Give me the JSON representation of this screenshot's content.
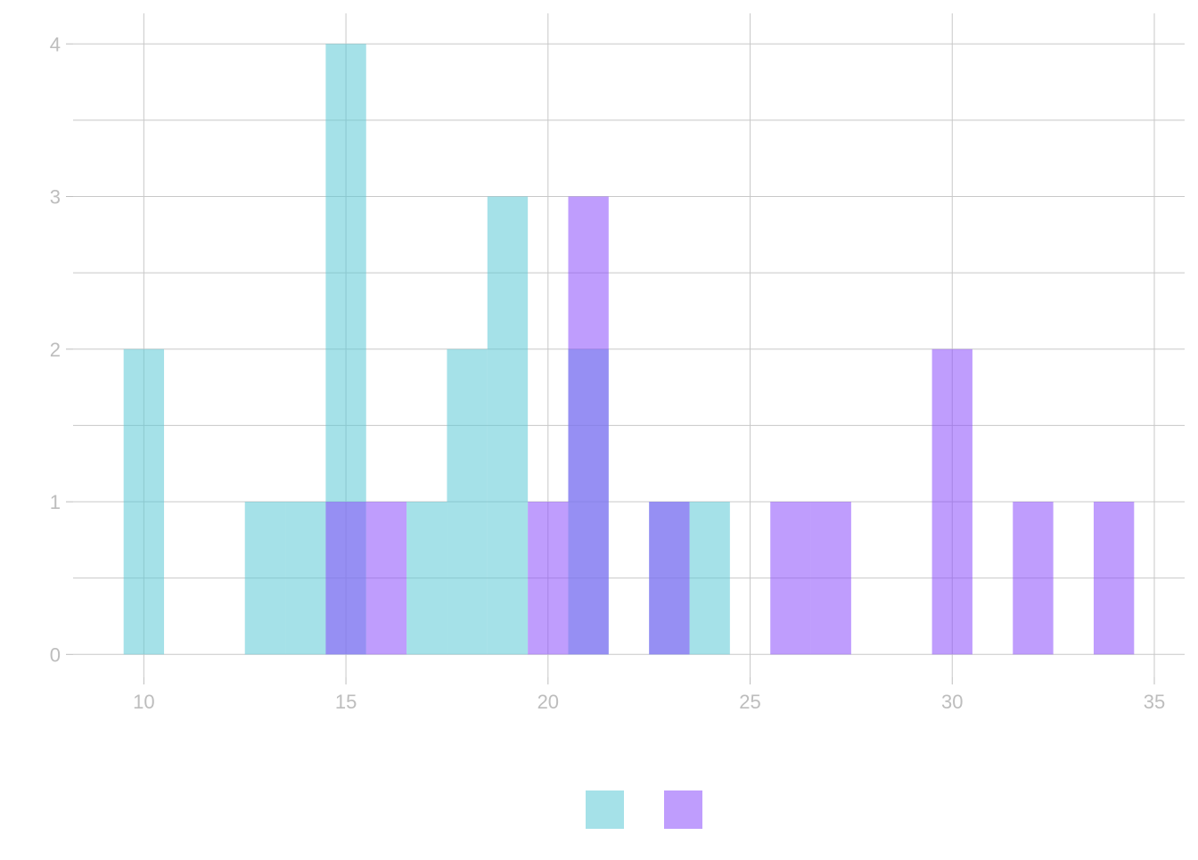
{
  "chart_data": {
    "type": "histogram",
    "title": "",
    "xlabel": "",
    "ylabel": "",
    "xlim": [
      8.25,
      35.75
    ],
    "ylim": [
      -0.15,
      4.2
    ],
    "x_ticks": [
      10,
      15,
      20,
      25,
      30,
      35
    ],
    "y_ticks": [
      0,
      1,
      2,
      3,
      4
    ],
    "grid": true,
    "bin_width": 1,
    "legend_placement": "bottom-center",
    "series": [
      {
        "name": "",
        "color": "#5bc8d5",
        "bins": [
          {
            "x0": 9.5,
            "x1": 10.5,
            "count": 2
          },
          {
            "x0": 12.5,
            "x1": 13.5,
            "count": 1
          },
          {
            "x0": 13.5,
            "x1": 14.5,
            "count": 1
          },
          {
            "x0": 14.5,
            "x1": 15.5,
            "count": 4
          },
          {
            "x0": 16.5,
            "x1": 17.5,
            "count": 1
          },
          {
            "x0": 17.5,
            "x1": 18.5,
            "count": 2
          },
          {
            "x0": 18.5,
            "x1": 19.5,
            "count": 3
          },
          {
            "x0": 20.5,
            "x1": 21.5,
            "count": 2
          },
          {
            "x0": 22.5,
            "x1": 23.5,
            "count": 1
          },
          {
            "x0": 23.5,
            "x1": 24.5,
            "count": 1
          }
        ]
      },
      {
        "name": "",
        "color": "#8a4dfb",
        "bins": [
          {
            "x0": 14.5,
            "x1": 15.5,
            "count": 1
          },
          {
            "x0": 15.5,
            "x1": 16.5,
            "count": 1
          },
          {
            "x0": 19.5,
            "x1": 20.5,
            "count": 1
          },
          {
            "x0": 20.5,
            "x1": 21.5,
            "count": 3
          },
          {
            "x0": 22.5,
            "x1": 23.5,
            "count": 1
          },
          {
            "x0": 25.5,
            "x1": 26.5,
            "count": 1
          },
          {
            "x0": 26.5,
            "x1": 27.5,
            "count": 1
          },
          {
            "x0": 29.5,
            "x1": 30.5,
            "count": 2
          },
          {
            "x0": 31.5,
            "x1": 32.5,
            "count": 1
          },
          {
            "x0": 33.5,
            "x1": 34.5,
            "count": 1
          }
        ]
      }
    ]
  }
}
